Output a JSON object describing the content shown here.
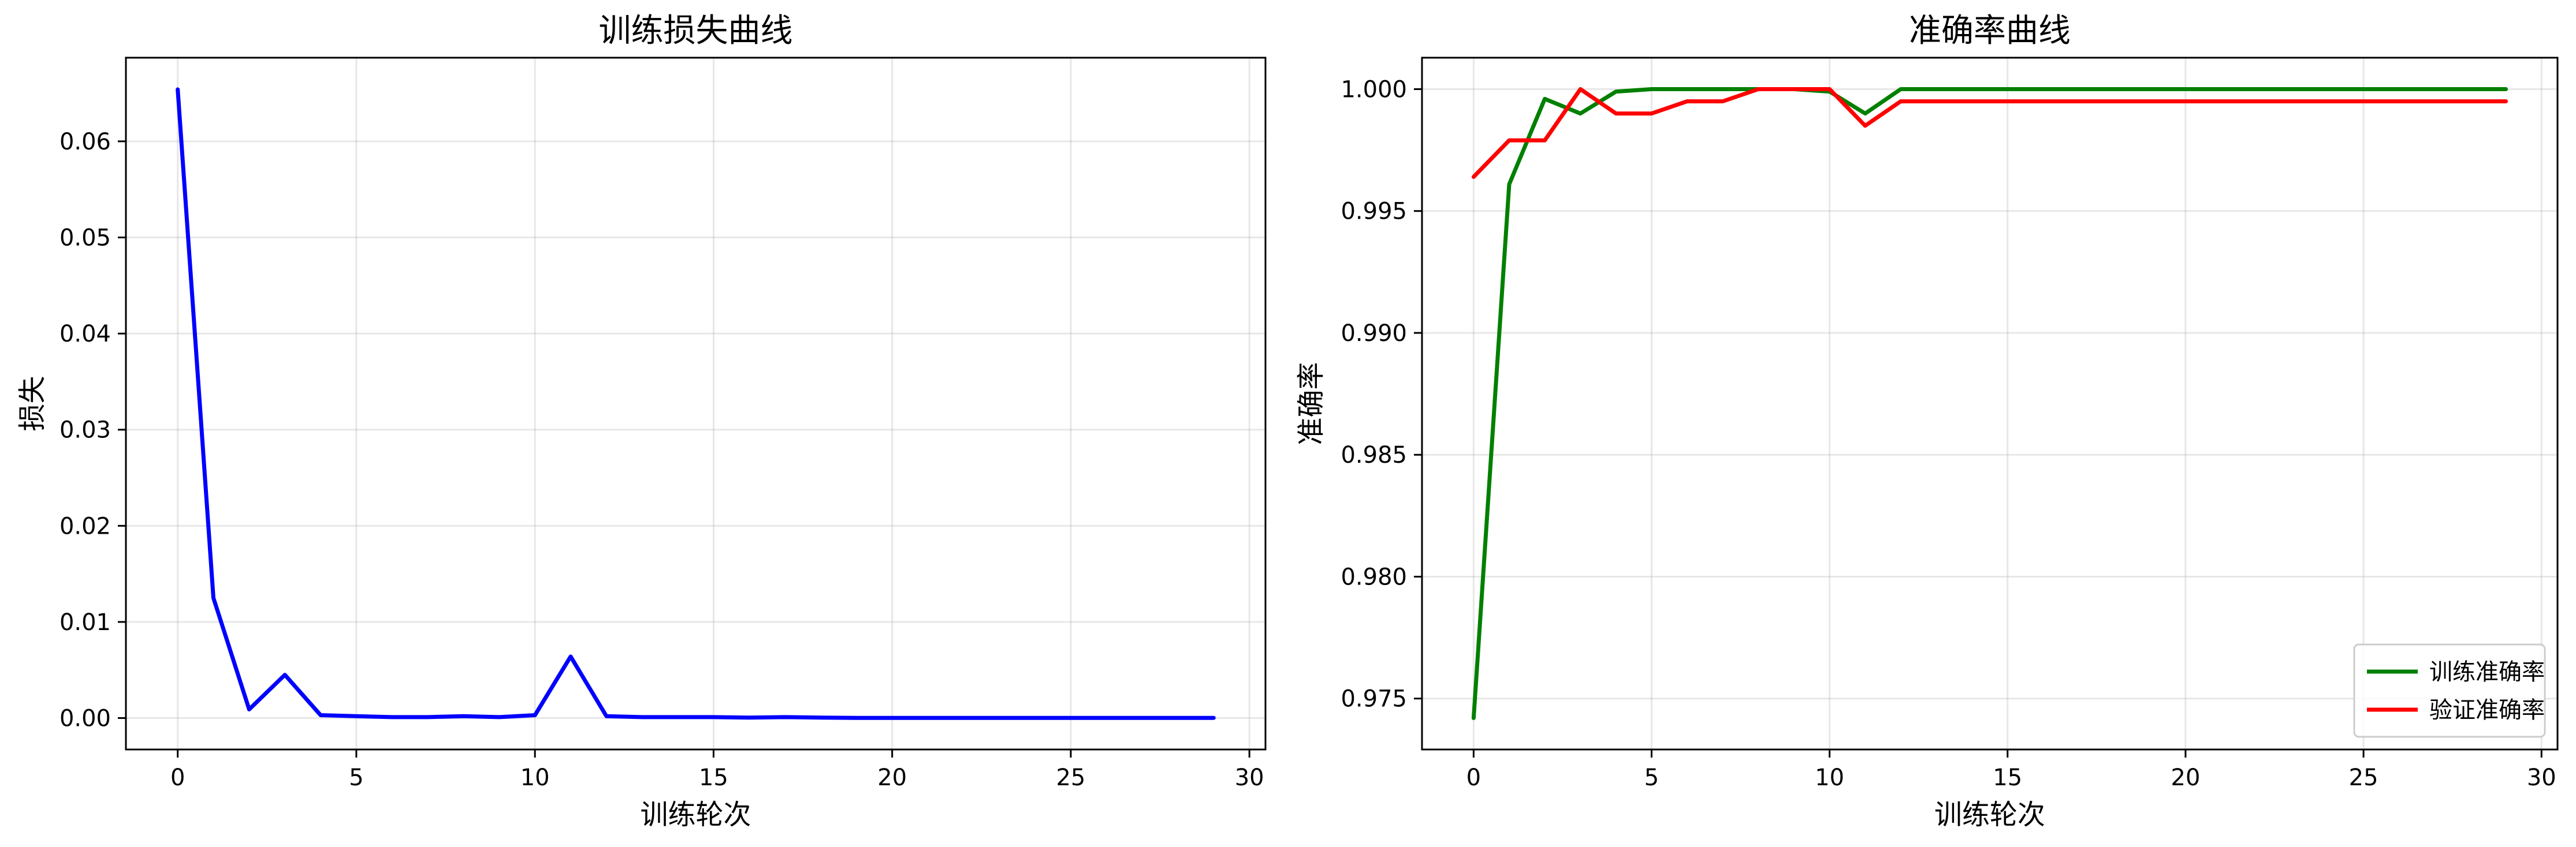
{
  "chart_data": [
    {
      "type": "line",
      "title": "训练损失曲线",
      "xlabel": "训练轮次",
      "ylabel": "损失",
      "xlim": [
        -1.45,
        30.45
      ],
      "ylim": [
        -0.00327,
        0.0687
      ],
      "xticks": [
        0,
        5,
        10,
        15,
        20,
        25,
        30
      ],
      "xtick_labels": [
        "0",
        "5",
        "10",
        "15",
        "20",
        "25",
        "30"
      ],
      "yticks": [
        0.0,
        0.01,
        0.02,
        0.03,
        0.04,
        0.05,
        0.06
      ],
      "ytick_labels": [
        "0.00",
        "0.01",
        "0.02",
        "0.03",
        "0.04",
        "0.05",
        "0.06"
      ],
      "grid": true,
      "legend": null,
      "series": [
        {
          "color": "#0000ff",
          "x": [
            0,
            1,
            2,
            3,
            4,
            5,
            6,
            7,
            8,
            9,
            10,
            11,
            12,
            13,
            14,
            15,
            16,
            17,
            18,
            19,
            20,
            21,
            22,
            23,
            24,
            25,
            26,
            27,
            28,
            29
          ],
          "values": [
            0.0654,
            0.0125,
            0.0009,
            0.0045,
            0.0003,
            0.0002,
            0.0001,
            0.0001,
            0.0002,
            0.0001,
            0.0003,
            0.0064,
            0.0002,
            0.0001,
            0.0001,
            0.0001,
            5e-05,
            0.0001,
            5e-05,
            2e-05,
            2e-05,
            2e-05,
            2e-05,
            2e-05,
            2e-05,
            2e-05,
            2e-05,
            2e-05,
            2e-05,
            2e-05
          ]
        }
      ]
    },
    {
      "type": "line",
      "title": "准确率曲线",
      "xlabel": "训练轮次",
      "ylabel": "准确率",
      "xlim": [
        -1.45,
        30.45
      ],
      "ylim": [
        0.97291,
        1.00129
      ],
      "xticks": [
        0,
        5,
        10,
        15,
        20,
        25,
        30
      ],
      "xtick_labels": [
        "0",
        "5",
        "10",
        "15",
        "20",
        "25",
        "30"
      ],
      "yticks": [
        0.975,
        0.98,
        0.985,
        0.99,
        0.995,
        1.0
      ],
      "ytick_labels": [
        "0.975",
        "0.980",
        "0.985",
        "0.990",
        "0.995",
        "1.000"
      ],
      "grid": true,
      "legend": "lower right",
      "series": [
        {
          "name": "训练准确率",
          "color": "#008000",
          "x": [
            0,
            1,
            2,
            3,
            4,
            5,
            6,
            7,
            8,
            9,
            10,
            11,
            12,
            13,
            14,
            15,
            16,
            17,
            18,
            19,
            20,
            21,
            22,
            23,
            24,
            25,
            26,
            27,
            28,
            29
          ],
          "values": [
            0.9742,
            0.9961,
            0.9996,
            0.999,
            0.9999,
            1.0,
            1.0,
            1.0,
            1.0,
            1.0,
            0.9999,
            0.999,
            1.0,
            1.0,
            1.0,
            1.0,
            1.0,
            1.0,
            1.0,
            1.0,
            1.0,
            1.0,
            1.0,
            1.0,
            1.0,
            1.0,
            1.0,
            1.0,
            1.0,
            1.0
          ]
        },
        {
          "name": "验证准确率",
          "color": "#ff0000",
          "x": [
            0,
            1,
            2,
            3,
            4,
            5,
            6,
            7,
            8,
            9,
            10,
            11,
            12,
            13,
            14,
            15,
            16,
            17,
            18,
            19,
            20,
            21,
            22,
            23,
            24,
            25,
            26,
            27,
            28,
            29
          ],
          "values": [
            0.9964,
            0.9979,
            0.9979,
            1.0,
            0.999,
            0.999,
            0.9995,
            0.9995,
            1.0,
            1.0,
            1.0,
            0.9985,
            0.9995,
            0.9995,
            0.9995,
            0.9995,
            0.9995,
            0.9995,
            0.9995,
            0.9995,
            0.9995,
            0.9995,
            0.9995,
            0.9995,
            0.9995,
            0.9995,
            0.9995,
            0.9995,
            0.9995,
            0.9995
          ]
        }
      ]
    }
  ]
}
